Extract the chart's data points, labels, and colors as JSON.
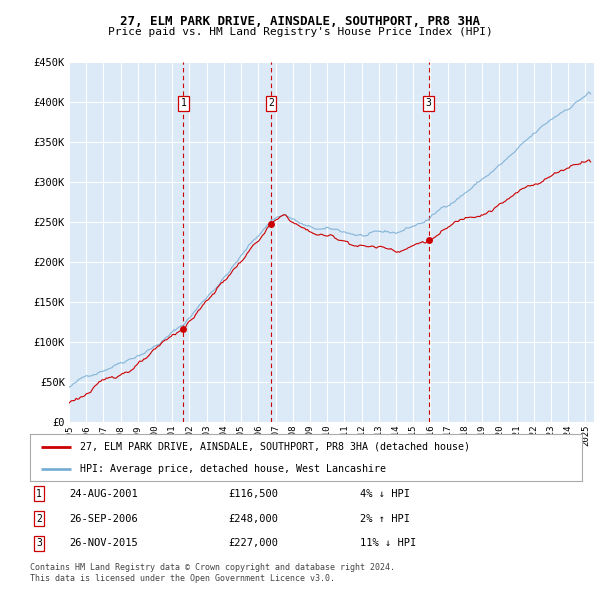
{
  "title": "27, ELM PARK DRIVE, AINSDALE, SOUTHPORT, PR8 3HA",
  "subtitle": "Price paid vs. HM Land Registry's House Price Index (HPI)",
  "background_color": "#ffffff",
  "plot_bg_color": "#dce9f7",
  "grid_color": "#ffffff",
  "ylim": [
    0,
    450000
  ],
  "yticks": [
    0,
    50000,
    100000,
    150000,
    200000,
    250000,
    300000,
    350000,
    400000,
    450000
  ],
  "xlim_start": 1995.0,
  "xlim_end": 2025.5,
  "hpi_color": "#7aafd4",
  "price_color": "#cc0000",
  "vline_color": "#cc0000",
  "legend_label_price": "27, ELM PARK DRIVE, AINSDALE, SOUTHPORT, PR8 3HA (detached house)",
  "legend_label_hpi": "HPI: Average price, detached house, West Lancashire",
  "sales": [
    {
      "num": 1,
      "date_str": "24-AUG-2001",
      "date_x": 2001.65,
      "price": 116500,
      "pct": "4%",
      "dir": "↓"
    },
    {
      "num": 2,
      "date_str": "26-SEP-2006",
      "date_x": 2006.74,
      "price": 248000,
      "pct": "2%",
      "dir": "↑"
    },
    {
      "num": 3,
      "date_str": "26-NOV-2015",
      "date_x": 2015.9,
      "price": 227000,
      "pct": "11%",
      "dir": "↓"
    }
  ],
  "footer1": "Contains HM Land Registry data © Crown copyright and database right 2024.",
  "footer2": "This data is licensed under the Open Government Licence v3.0."
}
